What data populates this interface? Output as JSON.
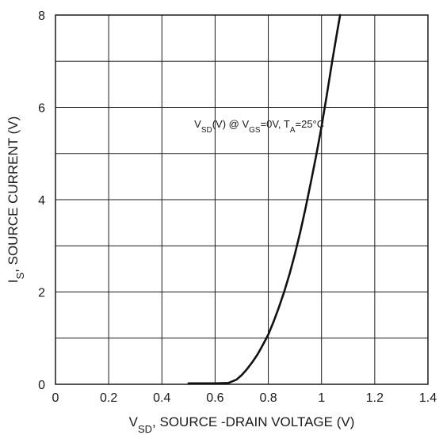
{
  "chart_data": {
    "type": "line",
    "xlabel": {
      "main": "V",
      "sub": "SD",
      "rest": ", SOURCE -DRAIN VOLTAGE (V)"
    },
    "ylabel": {
      "main": "I",
      "sub": "S",
      "rest": ", SOURCE CURRENT (V)"
    },
    "annotation": {
      "parts": [
        {
          "t": "V"
        },
        {
          "t": "SD",
          "sub": true
        },
        {
          "t": "(V) @ V"
        },
        {
          "t": "GS",
          "sub": true
        },
        {
          "t": "=0V, T"
        },
        {
          "t": "A",
          "sub": true
        },
        {
          "t": "=25°C"
        }
      ],
      "x": 0.9,
      "y": 5.6
    },
    "xlim": [
      0,
      1.4
    ],
    "ylim": [
      0,
      8
    ],
    "xticks": [
      0,
      0.2,
      0.4,
      0.6,
      0.8,
      1,
      1.2,
      1.4
    ],
    "xtick_labels": [
      "0",
      "0.2",
      "0.4",
      "0.6",
      "0.8",
      "1",
      "1.2",
      "1.4"
    ],
    "yticks": [
      0,
      2,
      4,
      6,
      8
    ],
    "ytick_labels": [
      "0",
      "2",
      "4",
      "6",
      "8"
    ],
    "grid": true,
    "series": [
      {
        "x": [
          0.5,
          0.55,
          0.6,
          0.65,
          0.68,
          0.7,
          0.72,
          0.74,
          0.76,
          0.78,
          0.8,
          0.82,
          0.84,
          0.86,
          0.88,
          0.9,
          0.92,
          0.94,
          0.96,
          0.98,
          1.0,
          1.02,
          1.04,
          1.06,
          1.07
        ],
        "y": [
          0.02,
          0.02,
          0.02,
          0.03,
          0.1,
          0.2,
          0.33,
          0.48,
          0.65,
          0.86,
          1.08,
          1.36,
          1.67,
          2.01,
          2.39,
          2.82,
          3.3,
          3.82,
          4.38,
          4.96,
          5.58,
          6.27,
          6.99,
          7.68,
          8.0
        ]
      }
    ]
  }
}
